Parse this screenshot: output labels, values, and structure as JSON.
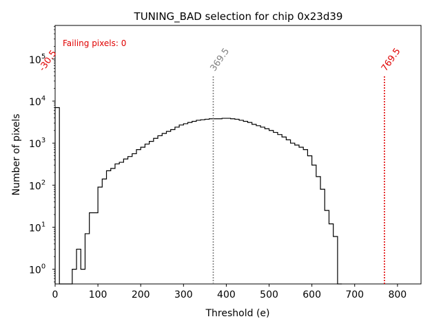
{
  "chart_data": {
    "type": "histogram",
    "title": "TUNING_BAD selection for chip 0x23d39",
    "xlabel": "Threshold (e)",
    "ylabel": "Number of pixels",
    "xlim": [
      0,
      855
    ],
    "ylim_log10": [
      -0.35,
      5.8
    ],
    "yscale": "log",
    "x_ticks": [
      0,
      100,
      200,
      300,
      400,
      500,
      600,
      700,
      800
    ],
    "x_tick_labels": [
      "0",
      "100",
      "200",
      "300",
      "400",
      "500",
      "600",
      "700",
      "800"
    ],
    "y_ticks_log10": [
      0,
      1,
      2,
      3,
      4,
      5
    ],
    "y_tick_bases": [
      "10",
      "10",
      "10",
      "10",
      "10",
      "10"
    ],
    "y_tick_exponents": [
      "0",
      "1",
      "2",
      "3",
      "4",
      "5"
    ],
    "annotation": "Failing pixels: 0",
    "vlines": [
      {
        "x": 369.5,
        "label": "369.5",
        "color": "#808080",
        "top_log10": 4.6
      },
      {
        "x": 769.5,
        "label": "769.5",
        "color": "#e00000",
        "top_log10": 4.6
      },
      {
        "x": -30.5,
        "label": "-30.5",
        "color": "#e00000",
        "top_log10": 4.6
      }
    ],
    "bin_edges": [
      0,
      10,
      20,
      30,
      40,
      50,
      60,
      70,
      80,
      90,
      100,
      110,
      120,
      130,
      140,
      150,
      160,
      170,
      180,
      190,
      200,
      210,
      220,
      230,
      240,
      250,
      260,
      270,
      280,
      290,
      300,
      310,
      320,
      330,
      340,
      350,
      360,
      370,
      380,
      390,
      400,
      410,
      420,
      430,
      440,
      450,
      460,
      470,
      480,
      490,
      500,
      510,
      520,
      530,
      540,
      550,
      560,
      570,
      580,
      590,
      600,
      610,
      620,
      630,
      640,
      650,
      660,
      670
    ],
    "counts": [
      7000,
      0,
      0,
      0,
      1,
      3,
      1,
      7,
      22,
      22,
      90,
      140,
      220,
      250,
      320,
      350,
      420,
      480,
      560,
      700,
      800,
      950,
      1100,
      1300,
      1500,
      1700,
      1900,
      2100,
      2400,
      2700,
      2900,
      3100,
      3300,
      3500,
      3600,
      3700,
      3800,
      3800,
      3800,
      3900,
      3900,
      3800,
      3700,
      3500,
      3300,
      3100,
      2800,
      2600,
      2400,
      2200,
      2000,
      1800,
      1600,
      1400,
      1200,
      1000,
      900,
      800,
      700,
      500,
      300,
      160,
      80,
      25,
      12,
      6,
      0
    ]
  }
}
